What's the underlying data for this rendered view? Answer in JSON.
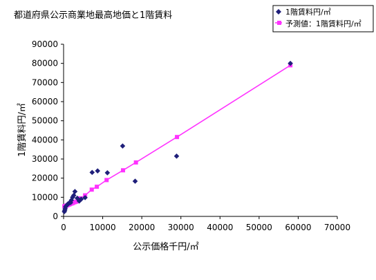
{
  "chart_data": {
    "type": "scatter",
    "title": "都道府県公示商業地最高地価と1階賃料",
    "xlabel": "公示価格千円/㎡",
    "ylabel": "1階賃料円/㎡",
    "xlim": [
      0,
      70000
    ],
    "ylim": [
      0,
      90000
    ],
    "x_ticks": [
      "0",
      "10000",
      "20000",
      "30000",
      "40000",
      "50000",
      "60000",
      "70000"
    ],
    "y_ticks": [
      "0",
      "10000",
      "20000",
      "30000",
      "40000",
      "50000",
      "60000",
      "70000",
      "80000",
      "90000"
    ],
    "grid": false,
    "legend_position": "top-right",
    "series": [
      {
        "name": "1階賃料円/㎡",
        "color": "#1f1f7a",
        "marker": "diamond",
        "points": [
          {
            "x": 200,
            "y": 2500
          },
          {
            "x": 300,
            "y": 3200
          },
          {
            "x": 400,
            "y": 4000
          },
          {
            "x": 500,
            "y": 5000
          },
          {
            "x": 700,
            "y": 5500
          },
          {
            "x": 900,
            "y": 6000
          },
          {
            "x": 1100,
            "y": 6500
          },
          {
            "x": 1300,
            "y": 6800
          },
          {
            "x": 1500,
            "y": 7000
          },
          {
            "x": 1800,
            "y": 7200
          },
          {
            "x": 2000,
            "y": 8500
          },
          {
            "x": 2300,
            "y": 10000
          },
          {
            "x": 2600,
            "y": 11000
          },
          {
            "x": 2900,
            "y": 13000
          },
          {
            "x": 3500,
            "y": 9500
          },
          {
            "x": 4000,
            "y": 8000
          },
          {
            "x": 4500,
            "y": 9000
          },
          {
            "x": 5500,
            "y": 9800
          },
          {
            "x": 7300,
            "y": 23000
          },
          {
            "x": 8700,
            "y": 23800
          },
          {
            "x": 11200,
            "y": 22800
          },
          {
            "x": 15100,
            "y": 36800
          },
          {
            "x": 18300,
            "y": 18400
          },
          {
            "x": 28900,
            "y": 31500
          },
          {
            "x": 58000,
            "y": 80000
          }
        ]
      },
      {
        "name": "予測値：1階賃料円/㎡",
        "color": "#ff33ff",
        "marker": "square",
        "line": true,
        "points": [
          {
            "x": 200,
            "y": 5300
          },
          {
            "x": 400,
            "y": 5400
          },
          {
            "x": 700,
            "y": 5600
          },
          {
            "x": 1000,
            "y": 5900
          },
          {
            "x": 1300,
            "y": 6100
          },
          {
            "x": 1600,
            "y": 6400
          },
          {
            "x": 2000,
            "y": 6700
          },
          {
            "x": 2400,
            "y": 7000
          },
          {
            "x": 2800,
            "y": 7400
          },
          {
            "x": 3200,
            "y": 7700
          },
          {
            "x": 3700,
            "y": 8100
          },
          {
            "x": 4200,
            "y": 9400
          },
          {
            "x": 5500,
            "y": 11000
          },
          {
            "x": 7200,
            "y": 14000
          },
          {
            "x": 8500,
            "y": 15500
          },
          {
            "x": 11000,
            "y": 19000
          },
          {
            "x": 15200,
            "y": 24100
          },
          {
            "x": 18500,
            "y": 28200
          },
          {
            "x": 29000,
            "y": 41500
          },
          {
            "x": 58000,
            "y": 79000
          }
        ]
      }
    ]
  }
}
